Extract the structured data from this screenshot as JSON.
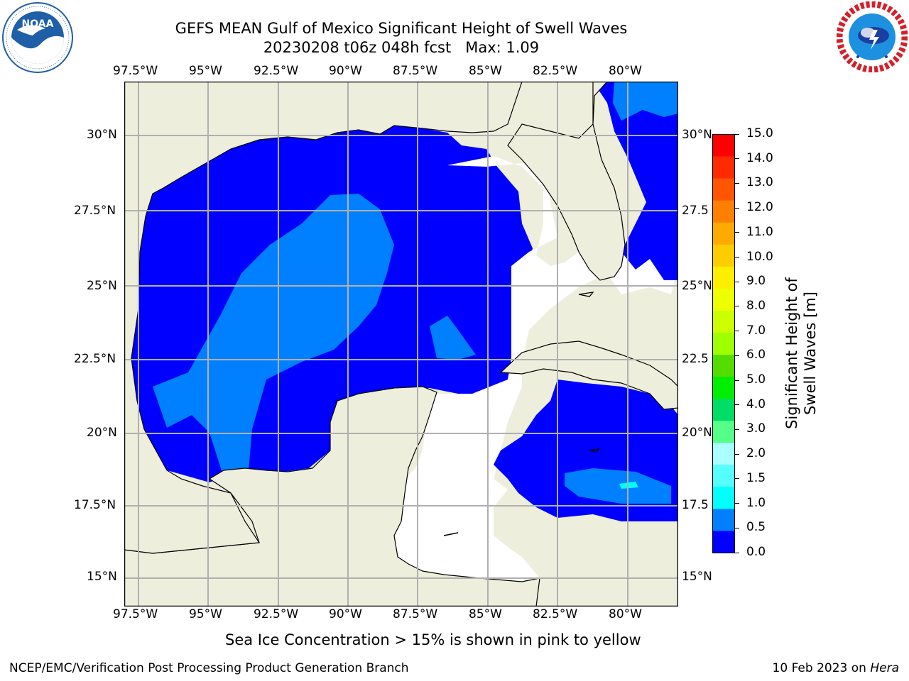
{
  "header": {
    "title_line1": "GEFS MEAN Gulf of Mexico Significant Height of Swell Waves",
    "title_line2": "20230208 t06z 048h fcst   Max: 1.09"
  },
  "logos": {
    "left": {
      "name": "NOAA",
      "ring_text": "NATIONAL OCEANIC AND ATMOSPHERIC ADMINISTRATION · U.S. DEPARTMENT OF COMMERCE",
      "color": "#1f5fa8"
    },
    "right": {
      "name": "National Weather Service",
      "ring_text": "NATIONAL WEATHER SERVICE",
      "color": "#d4202a"
    }
  },
  "map": {
    "lon_labels": [
      "97.5°W",
      "95°W",
      "92.5°W",
      "90°W",
      "87.5°W",
      "85°W",
      "82.5°W",
      "80°W"
    ],
    "lat_labels_left": [
      "30°N",
      "27.5°N",
      "25°N",
      "22.5°N",
      "20°N",
      "17.5°N",
      "15°N"
    ],
    "lat_labels_right": [
      "30°N",
      "27.5",
      "25°N",
      "22.5",
      "20°N",
      "17.5",
      "15°N"
    ],
    "colors": {
      "land": "#eeeedd",
      "sea_low": "#0000ff",
      "sea_mid": "#0080ff",
      "sea_high": "#00e0ff",
      "missing": "#ffffff",
      "grid": "#b0b0b0"
    }
  },
  "colorbar": {
    "label": "Significant Height of Swell Waves [m]",
    "ticks": [
      "15.0",
      "14.0",
      "13.0",
      "12.0",
      "11.0",
      "10.0",
      "9.0",
      "8.0",
      "7.0",
      "6.0",
      "5.0",
      "4.0",
      "3.0",
      "2.0",
      "1.5",
      "1.0",
      "0.5",
      "0.0"
    ],
    "bands": [
      "#ff0000",
      "#ff2a00",
      "#ff5500",
      "#ff8000",
      "#ffaa00",
      "#ffcc00",
      "#ffee00",
      "#eeff00",
      "#ccff00",
      "#a0ff00",
      "#55dd00",
      "#00ee00",
      "#00dd66",
      "#55ff88",
      "#aaffff",
      "#55ffff",
      "#00ffff",
      "#0080ff",
      "#0000ff"
    ]
  },
  "notes": {
    "sea_ice": "Sea Ice Concentration > 15% is shown in pink to yellow"
  },
  "footer": {
    "left": "NCEP/EMC/Verification Post Processing Product Generation Branch",
    "right_prefix": "10 Feb 2023 on ",
    "right_host": "Hera"
  }
}
